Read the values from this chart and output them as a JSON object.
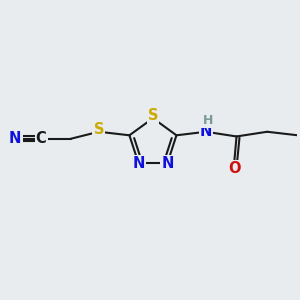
{
  "bg_color": "#e8ecee",
  "atom_colors": {
    "C": "#1a1a1a",
    "N": "#1010dd",
    "S": "#ccaa00",
    "O": "#cc1111",
    "H": "#7a9a9a"
  },
  "figsize": [
    3.0,
    3.0
  ],
  "dpi": 100,
  "line_color": "#1a1a1a",
  "lw": 1.5,
  "fs": 10.5
}
